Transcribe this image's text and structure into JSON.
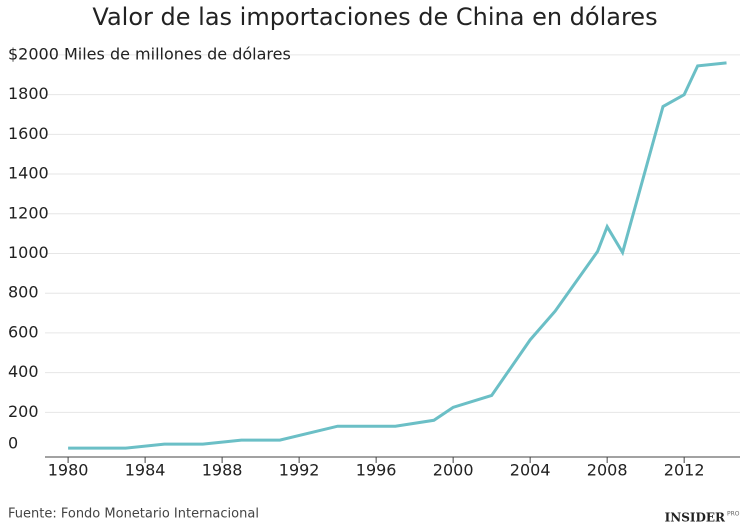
{
  "chart_data": {
    "type": "line",
    "title": "Valor de las importaciones de China en dólares",
    "x": [
      1980,
      1983,
      1985,
      1987,
      1989,
      1991,
      1994,
      1997,
      1999,
      2000,
      2002,
      2004,
      2005.3,
      2007.5,
      2008,
      2008.8,
      2010.9,
      2012,
      2012.7,
      2014.2
    ],
    "series": [
      {
        "name": "Importaciones",
        "color": "#6bbfc6",
        "values": [
          20,
          20,
          40,
          40,
          60,
          60,
          130,
          130,
          160,
          225,
          285,
          565,
          710,
          1010,
          1135,
          1005,
          1740,
          1800,
          1945,
          1960
        ]
      }
    ],
    "xlim": [
      1978.8,
      2014.9
    ],
    "xticks": [
      1980,
      1984,
      1988,
      1992,
      1996,
      2000,
      2004,
      2008,
      2012
    ],
    "ylim": [
      -25,
      2050
    ],
    "yticks": [
      0,
      200,
      400,
      600,
      800,
      1000,
      1200,
      1400,
      1600,
      1800,
      {
        "value": 2000,
        "label": "$2000 Miles de millones de dólares"
      }
    ],
    "grid": true,
    "source": "Fuente: Fondo Monetario Internacional",
    "brand": "INSIDER",
    "brand_sub": "PRO"
  }
}
